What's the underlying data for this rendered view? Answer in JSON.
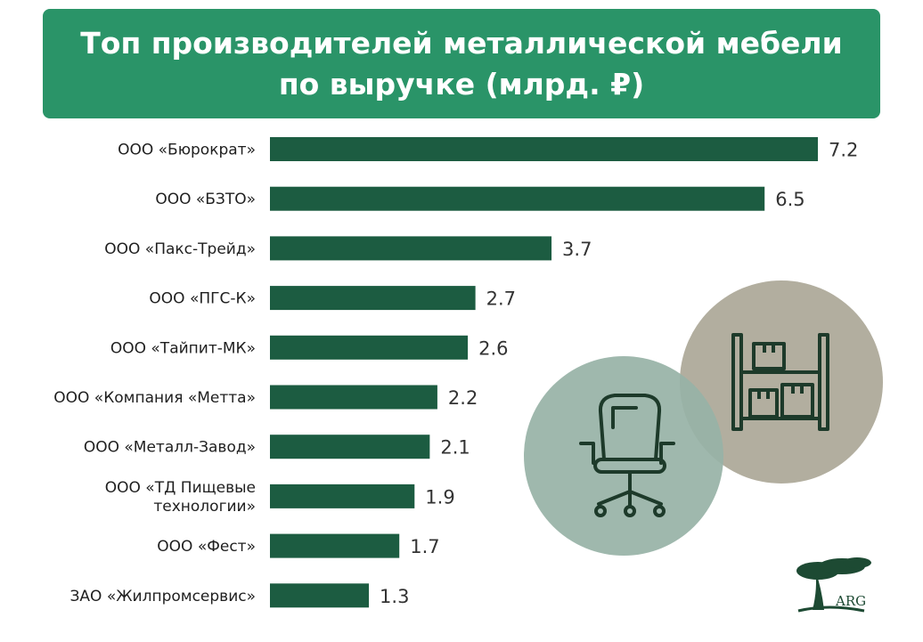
{
  "title": {
    "line1": "Топ производителей металлической мебели",
    "line2": "по выручке (млрд. ₽)"
  },
  "chart_data": {
    "type": "bar",
    "orientation": "horizontal",
    "title": "Топ производителей металлической мебели по выручке (млрд. ₽)",
    "categories": [
      "ООО «Бюрократ»",
      "ООО «БЗТО»",
      "ООО «Пакс-Трейд»",
      "ООО «ПГС-К»",
      "ООО «Тайпит-МК»",
      "ООО «Компания «Метта»",
      "ООО «Металл-Завод»",
      "ООО «ТД Пищевые технологии»",
      "ООО «Фест»",
      "ЗАО «Жилпромсервис»"
    ],
    "category_lines": [
      [
        "ООО «Бюрократ»"
      ],
      [
        "ООО «БЗТО»"
      ],
      [
        "ООО «Пакс-Трейд»"
      ],
      [
        "ООО «ПГС-К»"
      ],
      [
        "ООО «Тайпит-МК»"
      ],
      [
        "ООО «Компания «Метта»"
      ],
      [
        "ООО «Металл-Завод»"
      ],
      [
        "ООО «ТД Пищевые",
        "технологии»"
      ],
      [
        "ООО «Фест»"
      ],
      [
        "ЗАО «Жилпромсервис»"
      ]
    ],
    "values": [
      7.2,
      6.5,
      3.7,
      2.7,
      2.6,
      2.2,
      2.1,
      1.9,
      1.7,
      1.3
    ],
    "value_labels": [
      "7.2",
      "6.5",
      "3.7",
      "2.7",
      "2.6",
      "2.2",
      "2.1",
      "1.9",
      "1.7",
      "1.3"
    ],
    "xlim": [
      0,
      7.2
    ],
    "grid": false,
    "legend": "none"
  },
  "colors": {
    "title_bg": "#2a9468",
    "bar": "#1c5c41",
    "chair_circle": "#97b2a6",
    "shelf_circle": "#b2ae9f",
    "icon_stroke": "#1d3a2a"
  },
  "icons": {
    "chair": "office-chair-icon",
    "shelf": "warehouse-shelf-icon",
    "logo": "tree-logo-icon"
  },
  "logo": {
    "text": "ARG"
  }
}
